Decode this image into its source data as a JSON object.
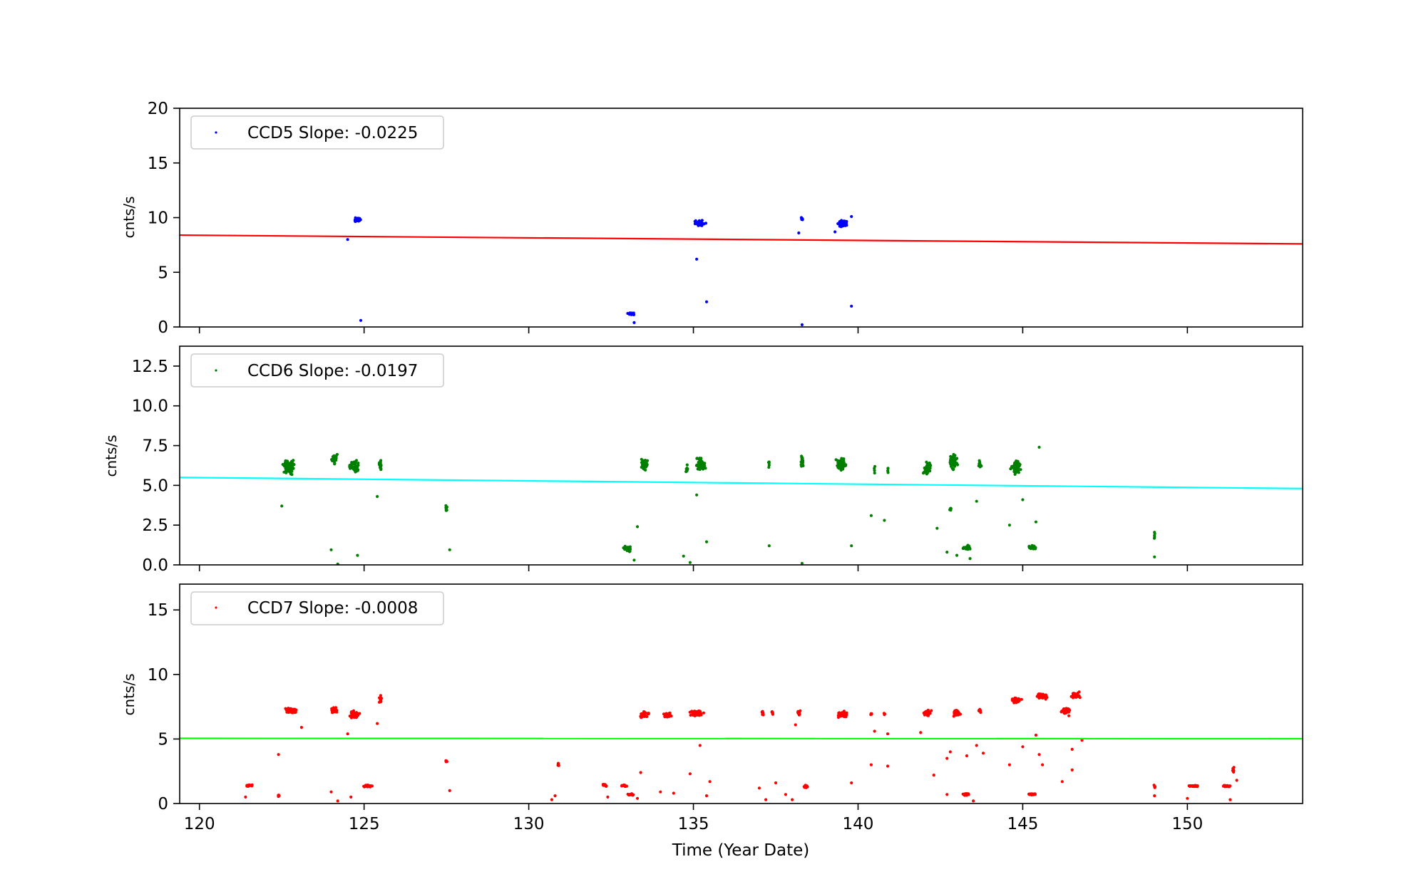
{
  "chart_data": [
    {
      "type": "scatter",
      "ylabel": "cnts/s",
      "ylim": [
        0,
        20
      ],
      "yticks": [
        0,
        5,
        10,
        15,
        20
      ],
      "ytick_labels": [
        "0",
        "5",
        "10",
        "15",
        "20"
      ],
      "xlim": [
        119.4,
        153.5
      ],
      "xticks": [
        120,
        125,
        130,
        135,
        140,
        145,
        150
      ],
      "show_xtick_labels": false,
      "legend": {
        "label": "CCD5 Slope: -0.0225",
        "placement": "upper-left"
      },
      "point_color": "#0000ff",
      "fit_color": "#ff0000",
      "fit_line": {
        "x": [
          119.4,
          153.5
        ],
        "y": [
          8.4,
          7.6
        ]
      },
      "clusters": [
        {
          "x": 124.8,
          "y": 9.8,
          "n": 40,
          "dx": 0.2,
          "dy": 0.25
        },
        {
          "x": 133.1,
          "y": 1.2,
          "n": 14,
          "dx": 0.15,
          "dy": 0.12
        },
        {
          "x": 135.2,
          "y": 9.5,
          "n": 40,
          "dx": 0.2,
          "dy": 0.35
        },
        {
          "x": 138.3,
          "y": 9.8,
          "n": 8,
          "dx": 0.05,
          "dy": 0.25
        },
        {
          "x": 139.5,
          "y": 9.5,
          "n": 40,
          "dx": 0.2,
          "dy": 0.35
        }
      ],
      "points": [
        {
          "x": 124.5,
          "y": 8.0
        },
        {
          "x": 124.9,
          "y": 0.6
        },
        {
          "x": 133.2,
          "y": 0.4
        },
        {
          "x": 135.1,
          "y": 6.2
        },
        {
          "x": 135.4,
          "y": 2.3
        },
        {
          "x": 138.2,
          "y": 8.6
        },
        {
          "x": 138.3,
          "y": 0.2
        },
        {
          "x": 139.3,
          "y": 8.7
        },
        {
          "x": 139.8,
          "y": 1.9
        },
        {
          "x": 139.8,
          "y": 10.1
        }
      ]
    },
    {
      "type": "scatter",
      "ylabel": "cnts/s",
      "ylim": [
        0,
        13.75
      ],
      "yticks": [
        0,
        2.5,
        5,
        7.5,
        10,
        12.5
      ],
      "ytick_labels": [
        "0.0",
        "2.5",
        "5.0",
        "7.5",
        "10.0",
        "12.5"
      ],
      "xlim": [
        119.4,
        153.5
      ],
      "xticks": [
        120,
        125,
        130,
        135,
        140,
        145,
        150
      ],
      "show_xtick_labels": false,
      "legend": {
        "label": "CCD6 Slope: -0.0197",
        "placement": "upper-left"
      },
      "point_color": "#008000",
      "fit_color": "#00ffff",
      "fit_line": {
        "x": [
          119.4,
          153.5
        ],
        "y": [
          5.5,
          4.8
        ]
      },
      "clusters": [
        {
          "x": 122.7,
          "y": 6.2,
          "n": 90,
          "dx": 0.22,
          "dy": 0.6
        },
        {
          "x": 124.1,
          "y": 6.7,
          "n": 30,
          "dx": 0.1,
          "dy": 0.5
        },
        {
          "x": 124.7,
          "y": 6.2,
          "n": 55,
          "dx": 0.2,
          "dy": 0.5
        },
        {
          "x": 125.5,
          "y": 6.2,
          "n": 15,
          "dx": 0.05,
          "dy": 0.5
        },
        {
          "x": 127.5,
          "y": 3.6,
          "n": 8,
          "dx": 0.04,
          "dy": 0.3
        },
        {
          "x": 133.0,
          "y": 1.0,
          "n": 25,
          "dx": 0.15,
          "dy": 0.2
        },
        {
          "x": 133.5,
          "y": 6.3,
          "n": 45,
          "dx": 0.15,
          "dy": 0.55
        },
        {
          "x": 134.8,
          "y": 6.0,
          "n": 12,
          "dx": 0.05,
          "dy": 0.4
        },
        {
          "x": 135.2,
          "y": 6.3,
          "n": 55,
          "dx": 0.2,
          "dy": 0.55
        },
        {
          "x": 137.3,
          "y": 6.3,
          "n": 5,
          "dx": 0.03,
          "dy": 0.5
        },
        {
          "x": 138.3,
          "y": 6.5,
          "n": 20,
          "dx": 0.06,
          "dy": 0.5
        },
        {
          "x": 139.5,
          "y": 6.3,
          "n": 60,
          "dx": 0.2,
          "dy": 0.55
        },
        {
          "x": 140.5,
          "y": 6.0,
          "n": 4,
          "dx": 0.02,
          "dy": 0.4
        },
        {
          "x": 140.9,
          "y": 6.0,
          "n": 4,
          "dx": 0.02,
          "dy": 0.4
        },
        {
          "x": 142.1,
          "y": 6.0,
          "n": 40,
          "dx": 0.15,
          "dy": 0.55
        },
        {
          "x": 142.9,
          "y": 6.5,
          "n": 50,
          "dx": 0.15,
          "dy": 0.6
        },
        {
          "x": 142.8,
          "y": 3.5,
          "n": 6,
          "dx": 0.04,
          "dy": 0.25
        },
        {
          "x": 143.3,
          "y": 1.1,
          "n": 25,
          "dx": 0.15,
          "dy": 0.2
        },
        {
          "x": 143.7,
          "y": 6.3,
          "n": 14,
          "dx": 0.05,
          "dy": 0.4
        },
        {
          "x": 144.8,
          "y": 6.2,
          "n": 60,
          "dx": 0.2,
          "dy": 0.6
        },
        {
          "x": 145.3,
          "y": 1.1,
          "n": 25,
          "dx": 0.15,
          "dy": 0.2
        },
        {
          "x": 149.0,
          "y": 1.9,
          "n": 5,
          "dx": 0.02,
          "dy": 0.35
        }
      ],
      "points": [
        {
          "x": 122.5,
          "y": 3.7
        },
        {
          "x": 124.0,
          "y": 0.95
        },
        {
          "x": 124.2,
          "y": 0.05
        },
        {
          "x": 125.4,
          "y": 4.3
        },
        {
          "x": 124.8,
          "y": 0.6
        },
        {
          "x": 127.6,
          "y": 0.95
        },
        {
          "x": 133.3,
          "y": 2.4
        },
        {
          "x": 133.2,
          "y": 0.3
        },
        {
          "x": 134.7,
          "y": 0.55
        },
        {
          "x": 134.9,
          "y": 0.15
        },
        {
          "x": 135.1,
          "y": 4.4
        },
        {
          "x": 135.4,
          "y": 1.45
        },
        {
          "x": 137.3,
          "y": 1.2
        },
        {
          "x": 138.3,
          "y": 0.1
        },
        {
          "x": 139.8,
          "y": 1.2
        },
        {
          "x": 140.4,
          "y": 3.1
        },
        {
          "x": 140.8,
          "y": 2.8
        },
        {
          "x": 142.4,
          "y": 2.3
        },
        {
          "x": 142.7,
          "y": 0.8
        },
        {
          "x": 143.0,
          "y": 0.6
        },
        {
          "x": 143.6,
          "y": 4.0
        },
        {
          "x": 143.4,
          "y": 0.4
        },
        {
          "x": 145.0,
          "y": 4.1
        },
        {
          "x": 144.6,
          "y": 2.5
        },
        {
          "x": 145.4,
          "y": 2.7
        },
        {
          "x": 145.5,
          "y": 7.4
        },
        {
          "x": 149.0,
          "y": 0.5
        }
      ]
    },
    {
      "type": "scatter",
      "ylabel": "cnts/s",
      "xlabel": "Time (Year Date)",
      "ylim": [
        0,
        17
      ],
      "yticks": [
        0,
        5,
        10,
        15
      ],
      "ytick_labels": [
        "0",
        "5",
        "10",
        "15"
      ],
      "xlim": [
        119.4,
        153.5
      ],
      "xticks": [
        120,
        125,
        130,
        135,
        140,
        145,
        150
      ],
      "xtick_labels": [
        "120",
        "125",
        "130",
        "135",
        "140",
        "145",
        "150"
      ],
      "show_xtick_labels": true,
      "legend": {
        "label": "CCD7 Slope: -0.0008",
        "placement": "upper-left"
      },
      "point_color": "#ff0000",
      "fit_color": "#00ff00",
      "fit_line": {
        "x": [
          119.4,
          153.5
        ],
        "y": [
          5.05,
          5.02
        ]
      },
      "clusters": [
        {
          "x": 121.5,
          "y": 1.4,
          "n": 18,
          "dx": 0.12,
          "dy": 0.12
        },
        {
          "x": 122.4,
          "y": 0.6,
          "n": 5,
          "dx": 0.03,
          "dy": 0.15
        },
        {
          "x": 122.8,
          "y": 7.2,
          "n": 70,
          "dx": 0.22,
          "dy": 0.25
        },
        {
          "x": 124.1,
          "y": 7.2,
          "n": 25,
          "dx": 0.12,
          "dy": 0.3
        },
        {
          "x": 124.7,
          "y": 6.9,
          "n": 55,
          "dx": 0.2,
          "dy": 0.35
        },
        {
          "x": 125.1,
          "y": 1.35,
          "n": 25,
          "dx": 0.18,
          "dy": 0.12
        },
        {
          "x": 125.5,
          "y": 8.1,
          "n": 15,
          "dx": 0.05,
          "dy": 0.35
        },
        {
          "x": 127.5,
          "y": 3.3,
          "n": 8,
          "dx": 0.04,
          "dy": 0.15
        },
        {
          "x": 130.9,
          "y": 3.0,
          "n": 8,
          "dx": 0.04,
          "dy": 0.15
        },
        {
          "x": 132.3,
          "y": 1.4,
          "n": 12,
          "dx": 0.1,
          "dy": 0.12
        },
        {
          "x": 132.9,
          "y": 1.4,
          "n": 12,
          "dx": 0.1,
          "dy": 0.12
        },
        {
          "x": 133.1,
          "y": 0.7,
          "n": 14,
          "dx": 0.15,
          "dy": 0.1
        },
        {
          "x": 133.5,
          "y": 6.9,
          "n": 40,
          "dx": 0.18,
          "dy": 0.3
        },
        {
          "x": 134.2,
          "y": 6.9,
          "n": 35,
          "dx": 0.15,
          "dy": 0.3
        },
        {
          "x": 135.1,
          "y": 7.0,
          "n": 65,
          "dx": 0.25,
          "dy": 0.3
        },
        {
          "x": 137.1,
          "y": 7.0,
          "n": 12,
          "dx": 0.05,
          "dy": 0.25
        },
        {
          "x": 137.4,
          "y": 7.0,
          "n": 6,
          "dx": 0.03,
          "dy": 0.25
        },
        {
          "x": 138.2,
          "y": 7.0,
          "n": 20,
          "dx": 0.06,
          "dy": 0.3
        },
        {
          "x": 138.4,
          "y": 1.3,
          "n": 14,
          "dx": 0.1,
          "dy": 0.15
        },
        {
          "x": 139.5,
          "y": 6.9,
          "n": 45,
          "dx": 0.2,
          "dy": 0.3
        },
        {
          "x": 140.4,
          "y": 7.0,
          "n": 4,
          "dx": 0.02,
          "dy": 0.2
        },
        {
          "x": 140.8,
          "y": 7.0,
          "n": 4,
          "dx": 0.02,
          "dy": 0.2
        },
        {
          "x": 142.1,
          "y": 7.0,
          "n": 40,
          "dx": 0.15,
          "dy": 0.3
        },
        {
          "x": 143.0,
          "y": 7.0,
          "n": 40,
          "dx": 0.15,
          "dy": 0.3
        },
        {
          "x": 143.3,
          "y": 0.7,
          "n": 18,
          "dx": 0.15,
          "dy": 0.1
        },
        {
          "x": 143.7,
          "y": 7.2,
          "n": 10,
          "dx": 0.05,
          "dy": 0.2
        },
        {
          "x": 144.8,
          "y": 8.0,
          "n": 50,
          "dx": 0.2,
          "dy": 0.25
        },
        {
          "x": 145.3,
          "y": 0.7,
          "n": 18,
          "dx": 0.15,
          "dy": 0.1
        },
        {
          "x": 145.6,
          "y": 8.3,
          "n": 45,
          "dx": 0.2,
          "dy": 0.3
        },
        {
          "x": 146.3,
          "y": 7.2,
          "n": 40,
          "dx": 0.18,
          "dy": 0.3
        },
        {
          "x": 146.6,
          "y": 8.4,
          "n": 40,
          "dx": 0.18,
          "dy": 0.3
        },
        {
          "x": 149.0,
          "y": 1.3,
          "n": 6,
          "dx": 0.03,
          "dy": 0.2
        },
        {
          "x": 150.2,
          "y": 1.35,
          "n": 25,
          "dx": 0.2,
          "dy": 0.1
        },
        {
          "x": 151.2,
          "y": 1.35,
          "n": 20,
          "dx": 0.18,
          "dy": 0.1
        },
        {
          "x": 151.4,
          "y": 2.7,
          "n": 8,
          "dx": 0.04,
          "dy": 0.4
        }
      ],
      "points": [
        {
          "x": 121.4,
          "y": 0.5
        },
        {
          "x": 122.4,
          "y": 3.8
        },
        {
          "x": 123.1,
          "y": 5.9
        },
        {
          "x": 124.0,
          "y": 0.9
        },
        {
          "x": 124.2,
          "y": 0.2
        },
        {
          "x": 124.5,
          "y": 5.4
        },
        {
          "x": 124.6,
          "y": 0.5
        },
        {
          "x": 125.4,
          "y": 6.2
        },
        {
          "x": 127.6,
          "y": 1.0
        },
        {
          "x": 130.8,
          "y": 0.6
        },
        {
          "x": 130.7,
          "y": 0.3
        },
        {
          "x": 132.4,
          "y": 0.5
        },
        {
          "x": 133.4,
          "y": 2.4
        },
        {
          "x": 133.3,
          "y": 0.4
        },
        {
          "x": 134.0,
          "y": 0.9
        },
        {
          "x": 134.4,
          "y": 0.8
        },
        {
          "x": 134.9,
          "y": 2.3
        },
        {
          "x": 135.2,
          "y": 4.5
        },
        {
          "x": 135.4,
          "y": 0.6
        },
        {
          "x": 135.5,
          "y": 1.7
        },
        {
          "x": 137.0,
          "y": 1.2
        },
        {
          "x": 137.2,
          "y": 0.3
        },
        {
          "x": 137.5,
          "y": 1.6
        },
        {
          "x": 137.8,
          "y": 0.7
        },
        {
          "x": 138.0,
          "y": 0.3
        },
        {
          "x": 138.1,
          "y": 6.1
        },
        {
          "x": 139.8,
          "y": 1.6
        },
        {
          "x": 140.4,
          "y": 3.0
        },
        {
          "x": 140.5,
          "y": 5.6
        },
        {
          "x": 140.9,
          "y": 2.9
        },
        {
          "x": 140.9,
          "y": 5.4
        },
        {
          "x": 141.9,
          "y": 5.5
        },
        {
          "x": 142.3,
          "y": 2.2
        },
        {
          "x": 142.7,
          "y": 3.5
        },
        {
          "x": 142.8,
          "y": 4.0
        },
        {
          "x": 142.7,
          "y": 0.7
        },
        {
          "x": 143.3,
          "y": 3.7
        },
        {
          "x": 143.5,
          "y": 0.2
        },
        {
          "x": 143.6,
          "y": 4.5
        },
        {
          "x": 143.8,
          "y": 3.9
        },
        {
          "x": 144.6,
          "y": 3.0
        },
        {
          "x": 145.0,
          "y": 4.4
        },
        {
          "x": 145.4,
          "y": 5.3
        },
        {
          "x": 145.5,
          "y": 3.8
        },
        {
          "x": 145.6,
          "y": 3.0
        },
        {
          "x": 146.2,
          "y": 1.7
        },
        {
          "x": 146.4,
          "y": 6.8
        },
        {
          "x": 146.5,
          "y": 2.6
        },
        {
          "x": 146.5,
          "y": 4.2
        },
        {
          "x": 146.8,
          "y": 4.9
        },
        {
          "x": 149.0,
          "y": 0.6
        },
        {
          "x": 150.0,
          "y": 0.4
        },
        {
          "x": 151.3,
          "y": 0.3
        },
        {
          "x": 151.5,
          "y": 1.8
        }
      ]
    }
  ]
}
